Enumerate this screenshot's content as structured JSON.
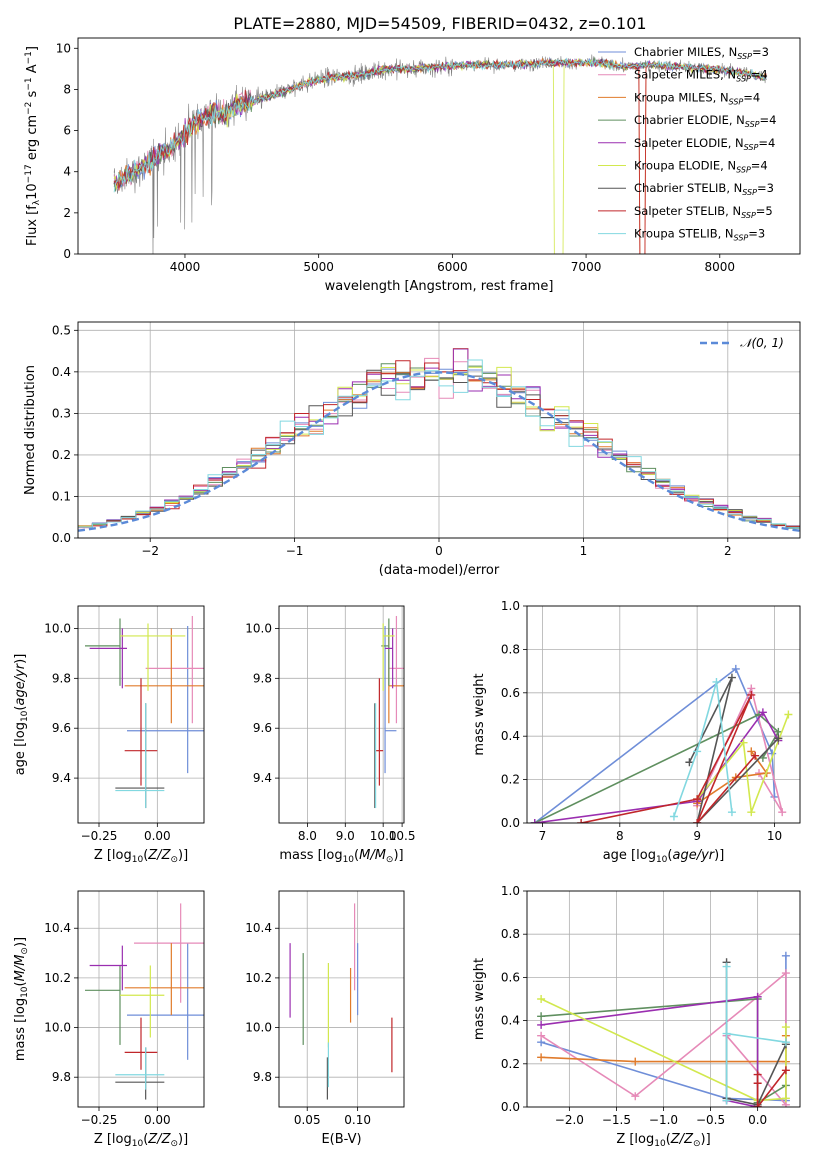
{
  "figure": {
    "title": "PLATE=2880, MJD=54509, FIBERID=0432, z=0.101"
  },
  "colors": {
    "Chabrier MILES": "#6f8ed8",
    "Salpeter MILES": "#e68ab8",
    "Kroupa MILES": "#e07b2b",
    "Chabrier ELODIE": "#5f8f5f",
    "Salpeter ELODIE": "#9a2eb0",
    "Kroupa ELODIE": "#d2e84e",
    "Chabrier STELIB": "#555555",
    "Salpeter STELIB": "#c0262a",
    "Kroupa STELIB": "#82d8e0",
    "data": "#808080",
    "normal": "#5b8ad8"
  },
  "chart_data": [
    {
      "id": "spectrum",
      "type": "line",
      "xlabel": "wavelength [Angstrom, rest frame]",
      "ylabel": "Flux [f_λ10^-17 erg cm^-2 s^-1 A^-1]",
      "xlim": [
        3200,
        8600
      ],
      "ylim": [
        0,
        10.5
      ],
      "xticks": [
        4000,
        5000,
        6000,
        7000,
        8000
      ],
      "yticks": [
        0,
        2,
        4,
        6,
        8,
        10
      ],
      "grid": false,
      "legend_position": "upper right",
      "data_range": [
        3470,
        8350
      ],
      "continuum": {
        "x": [
          3470,
          3600,
          3700,
          3800,
          3900,
          4000,
          4100,
          4200,
          4300,
          4400,
          4500,
          4700,
          4900,
          5100,
          5300,
          5500,
          5700,
          5900,
          6100,
          6300,
          6500,
          6700,
          6900,
          7100,
          7300,
          7500,
          7700,
          7900,
          8100,
          8350
        ],
        "y": [
          3.4,
          3.9,
          4.3,
          4.9,
          5.1,
          5.9,
          6.5,
          6.9,
          6.8,
          7.3,
          7.4,
          7.8,
          8.3,
          8.6,
          8.7,
          9.0,
          9.0,
          9.1,
          9.2,
          9.2,
          9.2,
          9.3,
          9.3,
          9.3,
          9.1,
          9.2,
          9.1,
          9.0,
          8.9,
          8.6
        ]
      },
      "legend": [
        {
          "label": "Chabrier MILES, N",
          "sub": "SSP",
          "value": "=3"
        },
        {
          "label": "Salpeter MILES, N",
          "sub": "SSP",
          "value": "=4"
        },
        {
          "label": "Kroupa MILES, N",
          "sub": "SSP",
          "value": "=4"
        },
        {
          "label": "Chabrier ELODIE, N",
          "sub": "SSP",
          "value": "=4"
        },
        {
          "label": "Salpeter ELODIE, N",
          "sub": "SSP",
          "value": "=4"
        },
        {
          "label": "Kroupa ELODIE, N",
          "sub": "SSP",
          "value": "=4"
        },
        {
          "label": "Chabrier STELIB, N",
          "sub": "SSP",
          "value": "=3"
        },
        {
          "label": "Salpeter STELIB, N",
          "sub": "SSP",
          "value": "=5"
        },
        {
          "label": "Kroupa STELIB, N",
          "sub": "SSP",
          "value": "=3"
        }
      ]
    },
    {
      "id": "residuals",
      "type": "line",
      "xlabel": "(data-model)/error",
      "ylabel": "Normed distribution",
      "xlim": [
        -2.5,
        2.5
      ],
      "ylim": [
        0,
        0.52
      ],
      "xticks": [
        -2,
        -1,
        0,
        1,
        2
      ],
      "yticks": [
        0.0,
        0.1,
        0.2,
        0.3,
        0.4,
        0.5
      ],
      "grid": true,
      "legend": [
        "𝒩(0, 1)"
      ],
      "legend_position": "upper right",
      "bin_width": 0.1
    },
    {
      "id": "age-Z",
      "type": "scatter",
      "xlabel": "Z [log10(Z/Z⊙)]",
      "ylabel": "age [log10(age/yr)]",
      "xlim": [
        -0.34,
        0.2
      ],
      "ylim": [
        9.22,
        10.09
      ],
      "xticks": [
        -0.25,
        0.0
      ],
      "yticks": [
        9.4,
        9.6,
        9.8,
        10.0
      ],
      "grid": true,
      "points": [
        {
          "model": "Chabrier MILES",
          "x": 0.13,
          "xerr": [
            0.26,
            0.08
          ],
          "y": 9.59,
          "yerr": [
            0.17,
            0.42
          ]
        },
        {
          "model": "Salpeter MILES",
          "x": 0.15,
          "xerr": [
            0.2,
            0.2
          ],
          "y": 9.84,
          "yerr": [
            0.22,
            0.21
          ]
        },
        {
          "model": "Kroupa MILES",
          "x": 0.06,
          "xerr": [
            0.2,
            0.2
          ],
          "y": 9.77,
          "yerr": [
            0.15,
            0.23
          ]
        },
        {
          "model": "Chabrier ELODIE",
          "x": -0.16,
          "xerr": [
            0.15,
            0.0
          ],
          "y": 9.93,
          "yerr": [
            0.16,
            0.11
          ]
        },
        {
          "model": "Salpeter ELODIE",
          "x": -0.15,
          "xerr": [
            0.14,
            0.02
          ],
          "y": 9.92,
          "yerr": [
            0.16,
            0.08
          ]
        },
        {
          "model": "Kroupa ELODIE",
          "x": -0.04,
          "xerr": [
            0.12,
            0.16
          ],
          "y": 9.97,
          "yerr": [
            0.22,
            0.05
          ]
        },
        {
          "model": "Chabrier STELIB",
          "x": -0.05,
          "xerr": [
            0.13,
            0.08
          ],
          "y": 9.36,
          "yerr": [
            0.08,
            0.34
          ]
        },
        {
          "model": "Salpeter STELIB",
          "x": -0.07,
          "xerr": [
            0.07,
            0.07
          ],
          "y": 9.51,
          "yerr": [
            0.14,
            0.29
          ]
        },
        {
          "model": "Kroupa STELIB",
          "x": -0.05,
          "xerr": [
            0.13,
            0.08
          ],
          "y": 9.35,
          "yerr": [
            0.07,
            0.35
          ]
        }
      ]
    },
    {
      "id": "age-mass",
      "type": "scatter",
      "xlabel": "mass [log10(M/M⊙)]",
      "ylabel": "",
      "xlim": [
        7.25,
        10.55
      ],
      "ylim": [
        9.22,
        10.09
      ],
      "xticks": [
        8.0,
        9.0,
        10.0,
        10.5
      ],
      "yticks": [
        9.4,
        9.6,
        9.8,
        10.0
      ],
      "grid": true,
      "points": [
        {
          "model": "Chabrier MILES",
          "x": 10.05,
          "xerr": [
            0.0,
            0.3
          ],
          "y": 9.59,
          "yerr": [
            0.17,
            0.42
          ]
        },
        {
          "model": "Salpeter MILES",
          "x": 10.35,
          "xerr": [
            0.2,
            0.2
          ],
          "y": 9.84,
          "yerr": [
            0.22,
            0.21
          ]
        },
        {
          "model": "Kroupa MILES",
          "x": 10.15,
          "xerr": [
            0.0,
            0.4
          ],
          "y": 9.77,
          "yerr": [
            0.15,
            0.23
          ]
        },
        {
          "model": "Chabrier ELODIE",
          "x": 10.15,
          "xerr": [
            0.2,
            0.0
          ],
          "y": 9.93,
          "yerr": [
            0.16,
            0.11
          ]
        },
        {
          "model": "Salpeter ELODIE",
          "x": 10.25,
          "xerr": [
            0.2,
            0.0
          ],
          "y": 9.92,
          "yerr": [
            0.16,
            0.08
          ]
        },
        {
          "model": "Kroupa ELODIE",
          "x": 10.0,
          "xerr": [
            0.0,
            0.3
          ],
          "y": 9.97,
          "yerr": [
            0.22,
            0.05
          ]
        },
        {
          "model": "Chabrier STELIB",
          "x": 9.78,
          "xerr": [
            0.0,
            0.0
          ],
          "y": 9.36,
          "yerr": [
            0.08,
            0.34
          ]
        },
        {
          "model": "Salpeter STELIB",
          "x": 9.9,
          "xerr": [
            0.1,
            0.1
          ],
          "y": 9.51,
          "yerr": [
            0.14,
            0.29
          ]
        },
        {
          "model": "Kroupa STELIB",
          "x": 9.8,
          "xerr": [
            0.0,
            0.0
          ],
          "y": 9.35,
          "yerr": [
            0.07,
            0.35
          ]
        }
      ]
    },
    {
      "id": "weight-age",
      "type": "line",
      "xlabel": "age [log10(age/yr)]",
      "ylabel": "mass weight",
      "xlim": [
        6.8,
        10.33
      ],
      "ylim": [
        0,
        1.0
      ],
      "xticks": [
        7,
        8,
        9,
        10
      ],
      "yticks": [
        0.0,
        0.2,
        0.4,
        0.6,
        0.8,
        1.0
      ],
      "grid": true,
      "series": [
        {
          "model": "Chabrier MILES",
          "x": [
            6.9,
            9.5,
            9.97,
            10.0
          ],
          "y": [
            0.0,
            0.71,
            0.32,
            0.12
          ]
        },
        {
          "model": "Salpeter MILES",
          "x": [
            9.0,
            9.7,
            10.1,
            9.8
          ],
          "y": [
            0.08,
            0.62,
            0.05,
            0.23
          ]
        },
        {
          "model": "Kroupa MILES",
          "x": [
            9.0,
            9.5,
            9.9,
            9.7
          ],
          "y": [
            0.09,
            0.21,
            0.23,
            0.33
          ]
        },
        {
          "model": "Chabrier ELODIE",
          "x": [
            6.9,
            9.8,
            10.05,
            9.85
          ],
          "y": [
            0.0,
            0.5,
            0.42,
            0.3
          ]
        },
        {
          "model": "Salpeter ELODIE",
          "x": [
            6.9,
            9.0,
            9.85,
            10.05
          ],
          "y": [
            0.0,
            0.1,
            0.51,
            0.38
          ]
        },
        {
          "model": "Kroupa ELODIE",
          "x": [
            9.0,
            9.6,
            9.7,
            10.18
          ],
          "y": [
            0.11,
            0.37,
            0.05,
            0.5
          ]
        },
        {
          "model": "Chabrier STELIB",
          "x": [
            8.9,
            9.45,
            9.0,
            10.05
          ],
          "y": [
            0.28,
            0.67,
            0.0,
            0.39
          ]
        },
        {
          "model": "Salpeter STELIB",
          "x": [
            7.5,
            9.0,
            9.7,
            9.0,
            9.75
          ],
          "y": [
            0.0,
            0.11,
            0.59,
            0.0,
            0.31
          ]
        },
        {
          "model": "Kroupa STELIB",
          "x": [
            8.7,
            9.0,
            9.25,
            9.45
          ],
          "y": [
            0.03,
            0.33,
            0.65,
            0.05
          ]
        }
      ]
    },
    {
      "id": "mass-Z",
      "type": "scatter",
      "xlabel": "Z [log10(Z/Z⊙)]",
      "ylabel": "mass [log10(M/M⊙)]",
      "xlim": [
        -0.34,
        0.2
      ],
      "ylim": [
        9.68,
        10.55
      ],
      "xticks": [
        -0.25,
        0.0
      ],
      "yticks": [
        9.8,
        10.0,
        10.2,
        10.4
      ],
      "grid": true,
      "points": [
        {
          "model": "Chabrier MILES",
          "x": 0.13,
          "xerr": [
            0.26,
            0.08
          ],
          "y": 10.05,
          "yerr": [
            0.18,
            0.29
          ]
        },
        {
          "model": "Salpeter MILES",
          "x": 0.1,
          "xerr": [
            0.2,
            0.1
          ],
          "y": 10.34,
          "yerr": [
            0.24,
            0.16
          ]
        },
        {
          "model": "Kroupa MILES",
          "x": 0.06,
          "xerr": [
            0.2,
            0.16
          ],
          "y": 10.16,
          "yerr": [
            0.11,
            0.18
          ]
        },
        {
          "model": "Chabrier ELODIE",
          "x": -0.16,
          "xerr": [
            0.15,
            0.0
          ],
          "y": 10.15,
          "yerr": [
            0.22,
            0.1
          ]
        },
        {
          "model": "Salpeter ELODIE",
          "x": -0.15,
          "xerr": [
            0.14,
            0.02
          ],
          "y": 10.25,
          "yerr": [
            0.1,
            0.08
          ]
        },
        {
          "model": "Kroupa ELODIE",
          "x": -0.03,
          "xerr": [
            0.13,
            0.06
          ],
          "y": 10.13,
          "yerr": [
            0.17,
            0.12
          ]
        },
        {
          "model": "Chabrier STELIB",
          "x": -0.05,
          "xerr": [
            0.13,
            0.08
          ],
          "y": 9.78,
          "yerr": [
            0.07,
            0.14
          ]
        },
        {
          "model": "Salpeter STELIB",
          "x": -0.07,
          "xerr": [
            0.07,
            0.07
          ],
          "y": 9.9,
          "yerr": [
            0.07,
            0.14
          ]
        },
        {
          "model": "Kroupa STELIB",
          "x": -0.05,
          "xerr": [
            0.13,
            0.08
          ],
          "y": 9.81,
          "yerr": [
            0.06,
            0.11
          ]
        }
      ]
    },
    {
      "id": "mass-EBV",
      "type": "scatter",
      "xlabel": "E(B-V)",
      "ylabel": "",
      "xlim": [
        0.022,
        0.146
      ],
      "ylim": [
        9.68,
        10.55
      ],
      "xticks": [
        0.05,
        0.1
      ],
      "yticks": [
        9.8,
        10.0,
        10.2,
        10.4
      ],
      "grid": true,
      "points": [
        {
          "model": "Chabrier MILES",
          "x": 0.1,
          "xerr": [
            0,
            0
          ],
          "y": 10.2,
          "yerr": [
            0.15,
            0.14
          ]
        },
        {
          "model": "Salpeter MILES",
          "x": 0.097,
          "xerr": [
            0,
            0
          ],
          "y": 10.3,
          "yerr": [
            0.15,
            0.2
          ]
        },
        {
          "model": "Kroupa MILES",
          "x": 0.093,
          "xerr": [
            0,
            0
          ],
          "y": 10.12,
          "yerr": [
            0.1,
            0.12
          ]
        },
        {
          "model": "Chabrier ELODIE",
          "x": 0.046,
          "xerr": [
            0,
            0
          ],
          "y": 10.11,
          "yerr": [
            0.18,
            0.19
          ]
        },
        {
          "model": "Salpeter ELODIE",
          "x": 0.033,
          "xerr": [
            0,
            0
          ],
          "y": 10.19,
          "yerr": [
            0.15,
            0.15
          ]
        },
        {
          "model": "Kroupa ELODIE",
          "x": 0.071,
          "xerr": [
            0,
            0
          ],
          "y": 10.04,
          "yerr": [
            0.12,
            0.22
          ]
        },
        {
          "model": "Chabrier STELIB",
          "x": 0.07,
          "xerr": [
            0,
            0
          ],
          "y": 9.78,
          "yerr": [
            0.07,
            0.1
          ]
        },
        {
          "model": "Salpeter STELIB",
          "x": 0.134,
          "xerr": [
            0,
            0
          ],
          "y": 9.93,
          "yerr": [
            0.11,
            0.11
          ]
        },
        {
          "model": "Kroupa STELIB",
          "x": 0.071,
          "xerr": [
            0,
            0
          ],
          "y": 9.83,
          "yerr": [
            0.07,
            0.11
          ]
        }
      ]
    },
    {
      "id": "weight-Z",
      "type": "line",
      "xlabel": "Z [log10(Z/Z⊙)]",
      "ylabel": "mass weight",
      "xlim": [
        -2.45,
        0.45
      ],
      "ylim": [
        0,
        1.0
      ],
      "xticks": [
        -2.0,
        -1.5,
        -1.0,
        -0.5,
        0.0
      ],
      "yticks": [
        0.0,
        0.2,
        0.4,
        0.6,
        0.8,
        1.0
      ],
      "grid": true,
      "series": [
        {
          "model": "Chabrier MILES",
          "x": [
            -2.3,
            -0.33,
            0.3,
            0.3
          ],
          "y": [
            0.3,
            0.04,
            0.03,
            0.7
          ]
        },
        {
          "model": "Salpeter MILES",
          "x": [
            -2.3,
            -1.3,
            0.0,
            0.3,
            0.3,
            -0.33
          ],
          "y": [
            0.33,
            0.05,
            0.51,
            0.62,
            0.01,
            0.33
          ]
        },
        {
          "model": "Kroupa MILES",
          "x": [
            -2.3,
            -1.3,
            0.3,
            0.3
          ],
          "y": [
            0.23,
            0.21,
            0.21,
            0.33
          ]
        },
        {
          "model": "Chabrier ELODIE",
          "x": [
            -2.3,
            0.0,
            0.0,
            0.3
          ],
          "y": [
            0.42,
            0.5,
            0.02,
            0.1
          ]
        },
        {
          "model": "Salpeter ELODIE",
          "x": [
            -2.3,
            0.0,
            0.0,
            -0.33
          ],
          "y": [
            0.38,
            0.51,
            0.0,
            0.03
          ]
        },
        {
          "model": "Kroupa ELODIE",
          "x": [
            -2.3,
            0.0,
            0.3,
            0.3
          ],
          "y": [
            0.5,
            0.03,
            0.04,
            0.37
          ]
        },
        {
          "model": "Chabrier STELIB",
          "x": [
            -0.33,
            -0.33,
            0.0,
            0.3
          ],
          "y": [
            0.67,
            0.04,
            0.01,
            0.29
          ]
        },
        {
          "model": "Salpeter STELIB",
          "x": [
            0.0,
            0.0,
            0.3,
            0.0,
            0.0
          ],
          "y": [
            0.15,
            0.0,
            0.17,
            0.0,
            0.11
          ]
        },
        {
          "model": "Kroupa STELIB",
          "x": [
            -0.33,
            -0.33,
            -0.33,
            0.3
          ],
          "y": [
            0.65,
            0.03,
            0.34,
            0.3
          ]
        }
      ]
    }
  ]
}
